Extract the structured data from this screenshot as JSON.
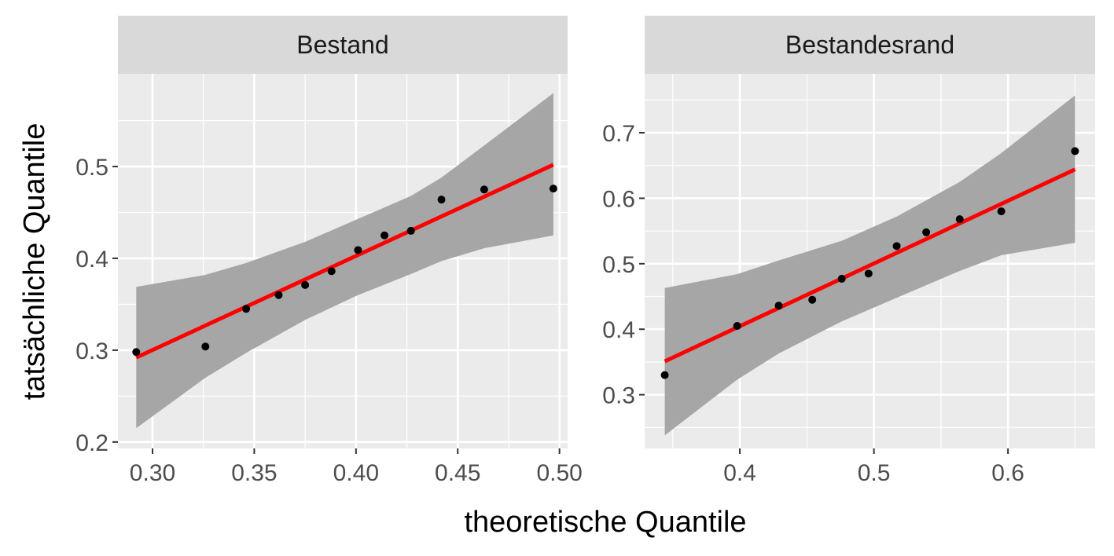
{
  "chart_data": {
    "type": "scatter",
    "xlabel": "theoretische Quantile",
    "ylabel": "tatsächliche Quantile",
    "colors": {
      "points": "#000000",
      "line": "#ff0000",
      "band": "#a6a6a6",
      "panel": "#ebebeb",
      "strip": "#d9d9d9",
      "grid": "#ffffff"
    },
    "grid": true,
    "panels": [
      {
        "title": "Bestand",
        "xlim": [
          0.283,
          0.504
        ],
        "ylim": [
          0.193,
          0.601
        ],
        "x_ticks": [
          0.3,
          0.35,
          0.4,
          0.45,
          0.5
        ],
        "x_tick_labels": [
          "0.30",
          "0.35",
          "0.40",
          "0.45",
          "0.50"
        ],
        "y_ticks": [
          0.2,
          0.3,
          0.4,
          0.5
        ],
        "y_tick_labels": [
          "0.2",
          "0.3",
          "0.4",
          "0.5"
        ],
        "points": [
          {
            "x": 0.292,
            "y": 0.298
          },
          {
            "x": 0.326,
            "y": 0.304
          },
          {
            "x": 0.346,
            "y": 0.345
          },
          {
            "x": 0.362,
            "y": 0.36
          },
          {
            "x": 0.375,
            "y": 0.371
          },
          {
            "x": 0.388,
            "y": 0.386
          },
          {
            "x": 0.401,
            "y": 0.409
          },
          {
            "x": 0.414,
            "y": 0.425
          },
          {
            "x": 0.427,
            "y": 0.43
          },
          {
            "x": 0.442,
            "y": 0.464
          },
          {
            "x": 0.463,
            "y": 0.475
          },
          {
            "x": 0.497,
            "y": 0.476
          }
        ],
        "fit_line": [
          {
            "x": 0.292,
            "y": 0.292
          },
          {
            "x": 0.497,
            "y": 0.502
          }
        ],
        "band_upper": [
          {
            "x": 0.292,
            "y": 0.369
          },
          {
            "x": 0.326,
            "y": 0.382
          },
          {
            "x": 0.346,
            "y": 0.395
          },
          {
            "x": 0.375,
            "y": 0.418
          },
          {
            "x": 0.401,
            "y": 0.443
          },
          {
            "x": 0.427,
            "y": 0.468
          },
          {
            "x": 0.442,
            "y": 0.488
          },
          {
            "x": 0.463,
            "y": 0.523
          },
          {
            "x": 0.497,
            "y": 0.58
          }
        ],
        "band_lower": [
          {
            "x": 0.292,
            "y": 0.215
          },
          {
            "x": 0.326,
            "y": 0.27
          },
          {
            "x": 0.346,
            "y": 0.297
          },
          {
            "x": 0.375,
            "y": 0.333
          },
          {
            "x": 0.401,
            "y": 0.36
          },
          {
            "x": 0.427,
            "y": 0.383
          },
          {
            "x": 0.442,
            "y": 0.397
          },
          {
            "x": 0.463,
            "y": 0.411
          },
          {
            "x": 0.497,
            "y": 0.425
          }
        ]
      },
      {
        "title": "Bestandesrand",
        "xlim": [
          0.329,
          0.665
        ],
        "ylim": [
          0.218,
          0.79
        ],
        "x_ticks": [
          0.4,
          0.5,
          0.6
        ],
        "x_tick_labels": [
          "0.4",
          "0.5",
          "0.6"
        ],
        "y_ticks": [
          0.3,
          0.4,
          0.5,
          0.6,
          0.7
        ],
        "y_tick_labels": [
          "0.3",
          "0.4",
          "0.5",
          "0.6",
          "0.7"
        ],
        "points": [
          {
            "x": 0.344,
            "y": 0.33
          },
          {
            "x": 0.398,
            "y": 0.405
          },
          {
            "x": 0.429,
            "y": 0.436
          },
          {
            "x": 0.454,
            "y": 0.445
          },
          {
            "x": 0.476,
            "y": 0.477
          },
          {
            "x": 0.496,
            "y": 0.485
          },
          {
            "x": 0.517,
            "y": 0.527
          },
          {
            "x": 0.539,
            "y": 0.548
          },
          {
            "x": 0.564,
            "y": 0.568
          },
          {
            "x": 0.595,
            "y": 0.58
          },
          {
            "x": 0.65,
            "y": 0.672
          }
        ],
        "fit_line": [
          {
            "x": 0.344,
            "y": 0.351
          },
          {
            "x": 0.65,
            "y": 0.644
          }
        ],
        "band_upper": [
          {
            "x": 0.344,
            "y": 0.463
          },
          {
            "x": 0.398,
            "y": 0.484
          },
          {
            "x": 0.429,
            "y": 0.505
          },
          {
            "x": 0.476,
            "y": 0.535
          },
          {
            "x": 0.517,
            "y": 0.572
          },
          {
            "x": 0.564,
            "y": 0.625
          },
          {
            "x": 0.595,
            "y": 0.669
          },
          {
            "x": 0.65,
            "y": 0.757
          }
        ],
        "band_lower": [
          {
            "x": 0.344,
            "y": 0.238
          },
          {
            "x": 0.398,
            "y": 0.323
          },
          {
            "x": 0.429,
            "y": 0.363
          },
          {
            "x": 0.476,
            "y": 0.412
          },
          {
            "x": 0.517,
            "y": 0.448
          },
          {
            "x": 0.564,
            "y": 0.489
          },
          {
            "x": 0.595,
            "y": 0.513
          },
          {
            "x": 0.65,
            "y": 0.532
          }
        ]
      }
    ]
  }
}
